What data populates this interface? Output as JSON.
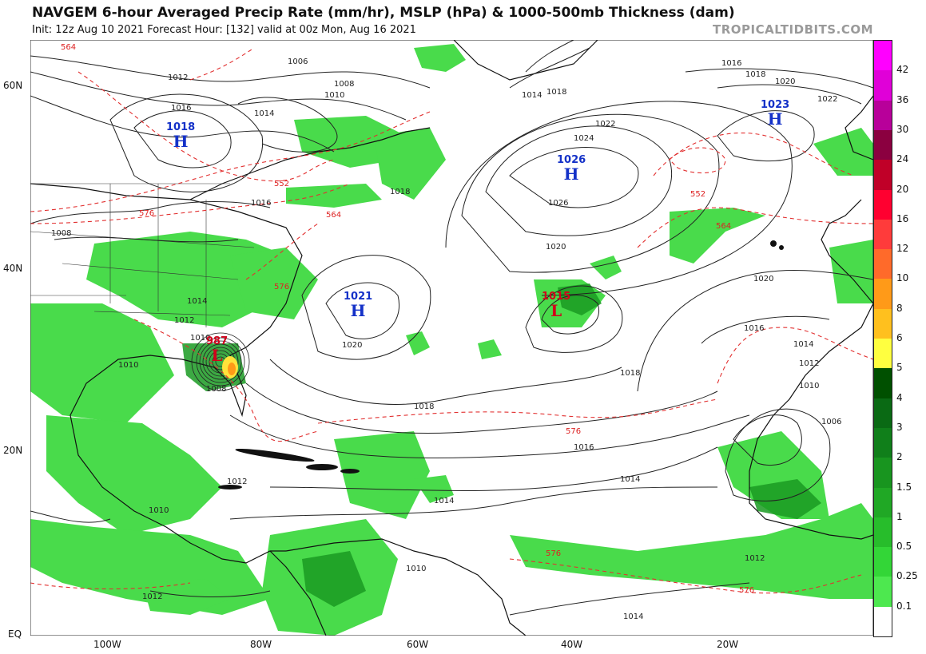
{
  "header": {
    "title": "NAVGEM 6-hour Averaged Precip Rate (mm/hr), MSLP (hPa) & 1000-500mb Thickness (dam)",
    "subtitle": "Init: 12z Aug 10 2021   Forecast Hour: [132]   valid at 00z Mon, Aug 16 2021",
    "credit": "TROPICALTIDBITS.COM"
  },
  "axes": {
    "lat_labels": [
      "60N",
      "40N",
      "20N",
      "EQ"
    ],
    "lon_labels": [
      "100W",
      "80W",
      "60W",
      "40W",
      "20W"
    ]
  },
  "colorbar": {
    "labels": [
      "42",
      "36",
      "30",
      "24",
      "20",
      "16",
      "12",
      "10",
      "8",
      "6",
      "5",
      "4",
      "3",
      "2",
      "1.5",
      "1",
      "0.5",
      "0.25",
      "0.1"
    ],
    "colors": [
      "#ff00ff",
      "#e000d8",
      "#b8009a",
      "#8b0040",
      "#c00028",
      "#ff0030",
      "#ff3b3b",
      "#ff6a2a",
      "#ff9a18",
      "#ffc01e",
      "#ffff40",
      "#005000",
      "#0a6a14",
      "#107f1a",
      "#18951f",
      "#20a825",
      "#27bd2b",
      "#33d637",
      "#4de84f",
      "#ffffff"
    ]
  },
  "systems": [
    {
      "type": "H",
      "value": "1018",
      "color": "#1431c8"
    },
    {
      "type": "H",
      "value": "1021",
      "color": "#1431c8"
    },
    {
      "type": "H",
      "value": "1026",
      "color": "#1431c8"
    },
    {
      "type": "H",
      "value": "1023",
      "color": "#1431c8"
    },
    {
      "type": "L",
      "value": "1015",
      "color": "#d0021b"
    },
    {
      "type": "L",
      "value": "987",
      "color": "#d0021b"
    }
  ],
  "isobar_labels": [
    "1006",
    "1008",
    "1010",
    "1012",
    "1014",
    "1016",
    "1018",
    "1020",
    "1022",
    "1024",
    "1026",
    "1014",
    "1016",
    "1018",
    "1020",
    "1022",
    "1020",
    "1018",
    "1016",
    "1014",
    "1012",
    "1010",
    "1008",
    "1006",
    "1016",
    "1014",
    "1012",
    "1018",
    "1014",
    "1012",
    "1010",
    "1008",
    "1010",
    "1012",
    "1014",
    "1016",
    "1010",
    "1020",
    "1008",
    "1012",
    "1010",
    "1014",
    "1018",
    "1016"
  ],
  "thickness_labels": [
    "564",
    "552",
    "576",
    "564",
    "576",
    "552",
    "564",
    "576",
    "576",
    "576"
  ]
}
